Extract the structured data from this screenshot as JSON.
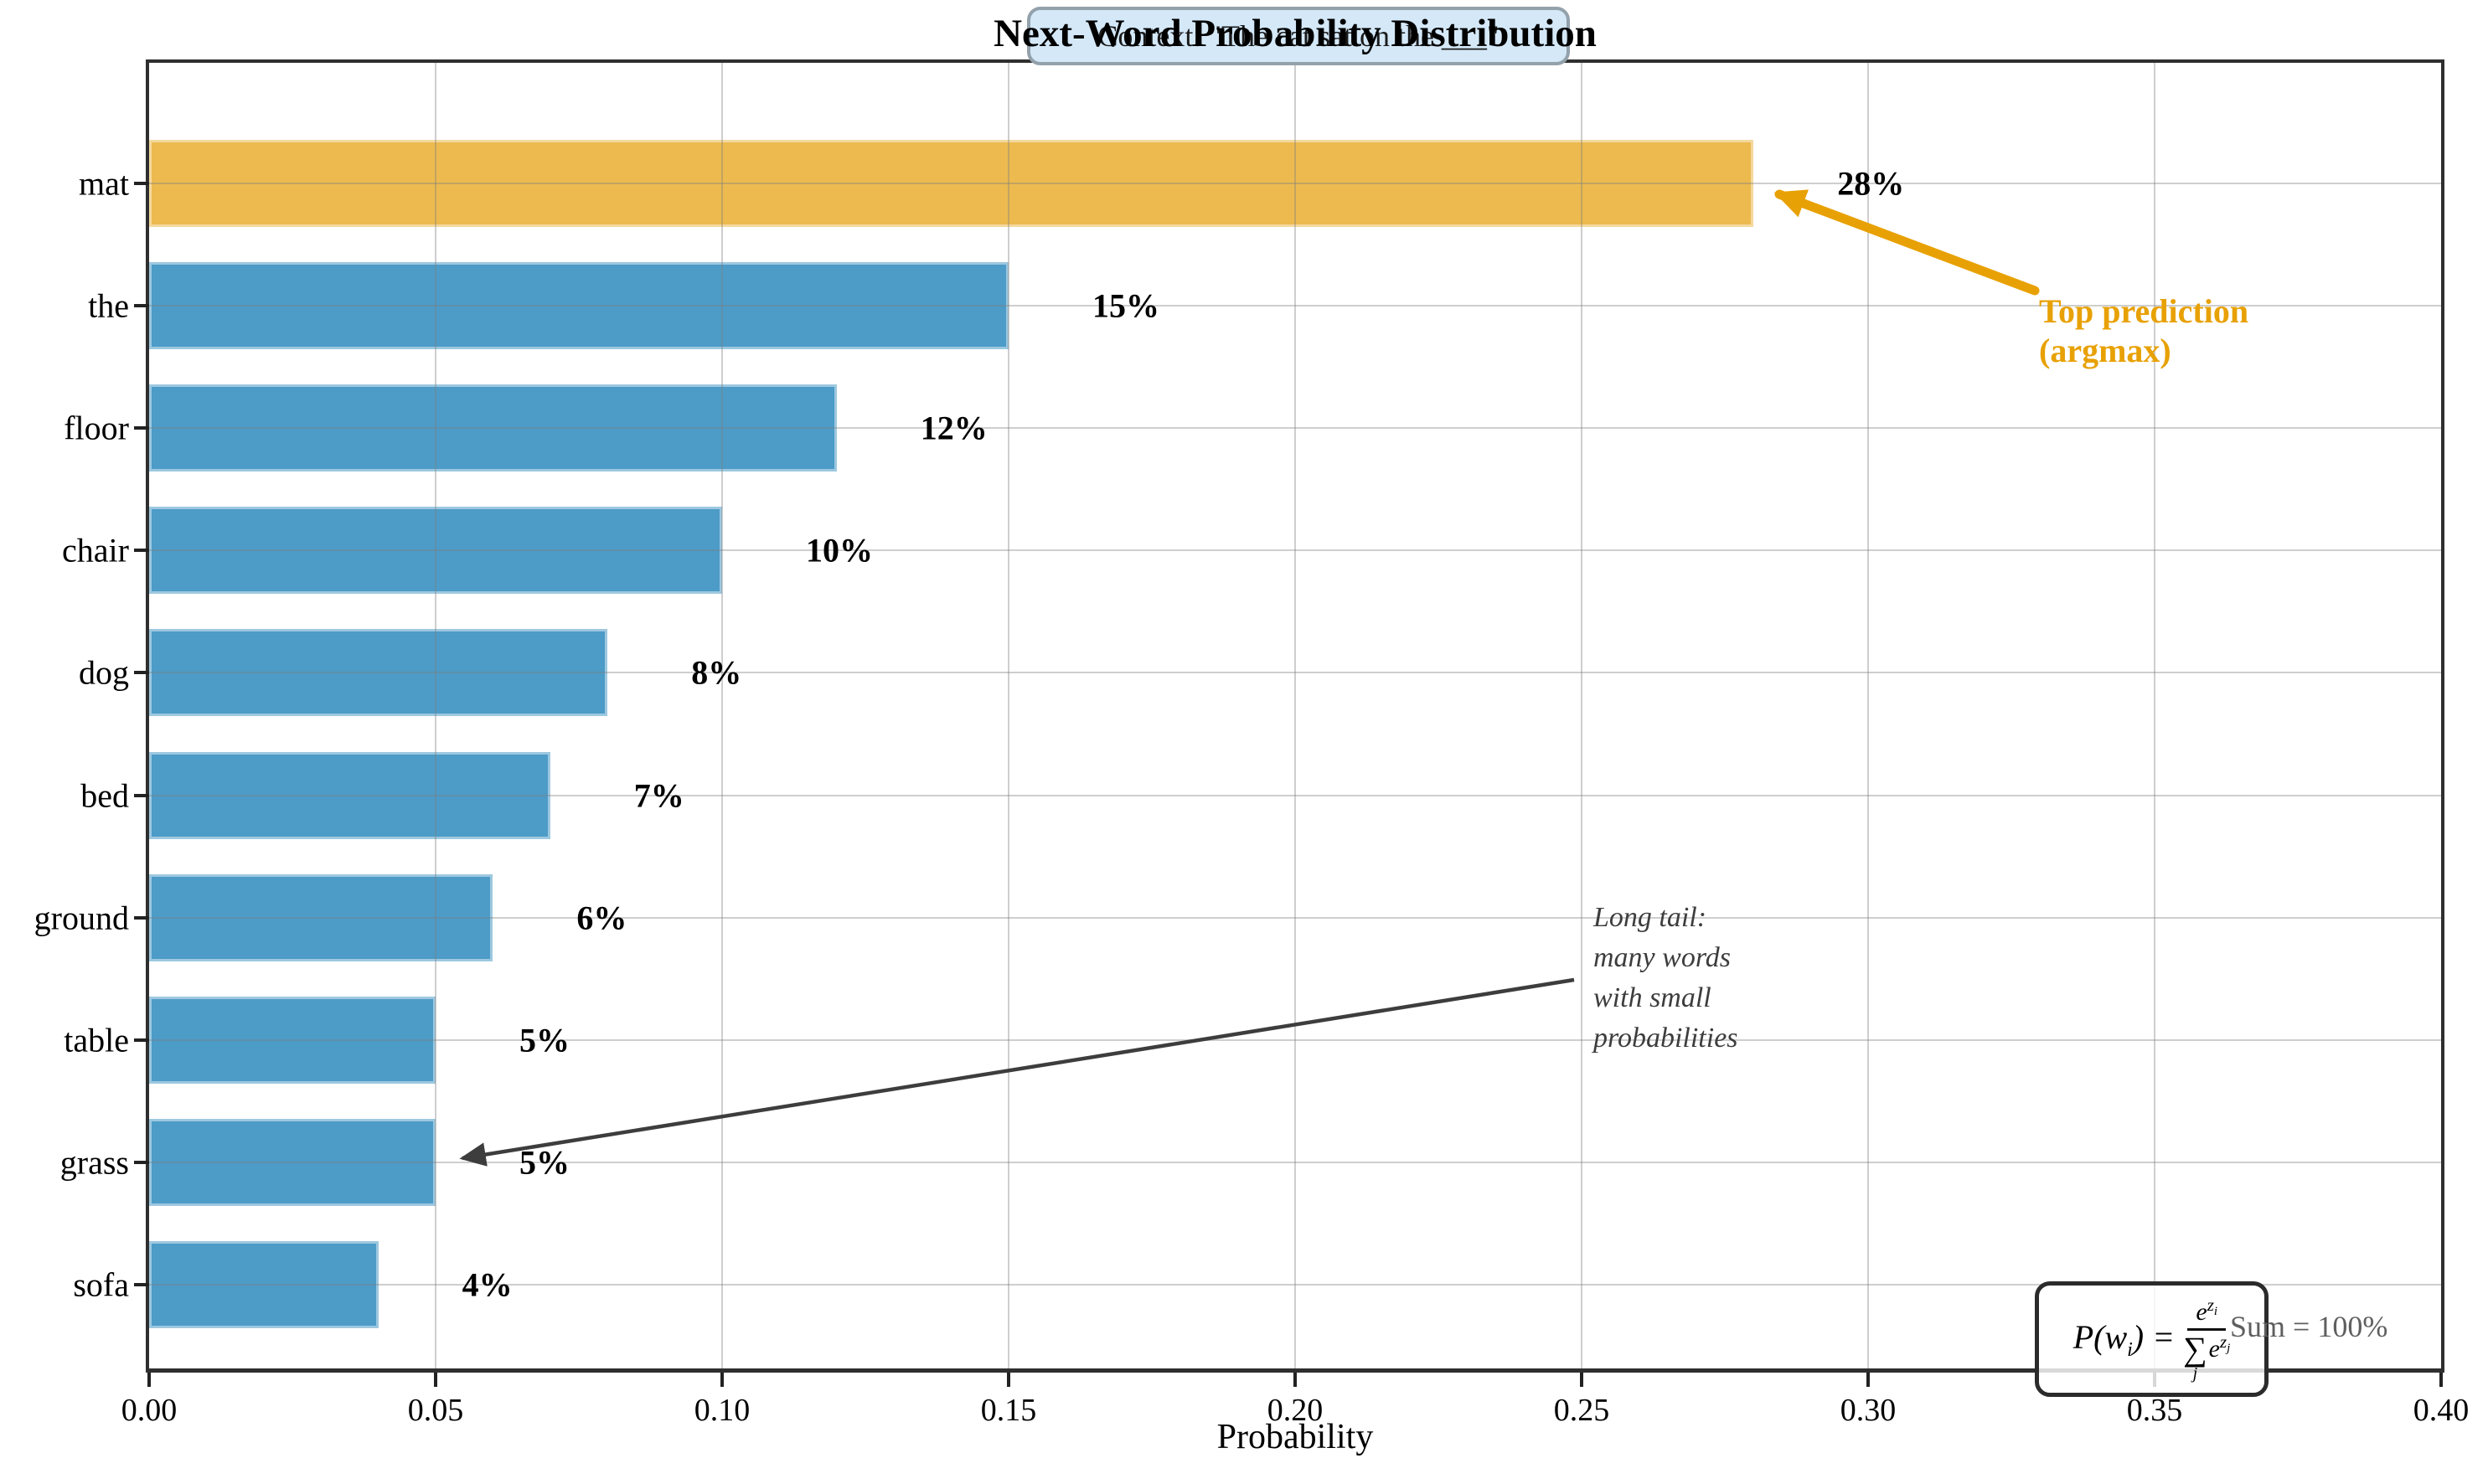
{
  "header": {
    "context_label": "Context: \"The cat sat on the ___\""
  },
  "chart_data": {
    "type": "bar",
    "orientation": "horizontal",
    "title": "Next-Word Probability Distribution",
    "xlabel": "Probability",
    "xlim": [
      0,
      0.4
    ],
    "xticks": [
      "0.00",
      "0.05",
      "0.10",
      "0.15",
      "0.20",
      "0.25",
      "0.30",
      "0.35",
      "0.40"
    ],
    "grid": true,
    "categories": [
      "mat",
      "the",
      "floor",
      "chair",
      "dog",
      "bed",
      "ground",
      "table",
      "grass",
      "sofa"
    ],
    "values": [
      0.28,
      0.15,
      0.12,
      0.1,
      0.08,
      0.07,
      0.06,
      0.05,
      0.05,
      0.04
    ],
    "bar_labels": [
      "28%",
      "15%",
      "12%",
      "10%",
      "8%",
      "7%",
      "6%",
      "5%",
      "5%",
      "4%"
    ],
    "highlight_index": 0,
    "colors": {
      "highlight": "#ecba4f",
      "default": "#4d9bc7"
    }
  },
  "annotations": {
    "top_prediction": {
      "line1": "Top prediction",
      "line2": "(argmax)",
      "color": "#e8a104"
    },
    "long_tail": {
      "lines": [
        "Long tail:",
        "many words",
        "with small",
        "probabilities"
      ]
    },
    "sum_note": "Sum = 100%",
    "formula": {
      "func": "P(w",
      "arg_sub": "i",
      "close_eq": ") =",
      "num_base": "e",
      "num_exp_base": "z",
      "num_exp_sub": "i",
      "sum_symbol": "∑",
      "sum_sub": "j",
      "den_base": "e",
      "den_exp_base": "z",
      "den_exp_sub": "j"
    }
  }
}
